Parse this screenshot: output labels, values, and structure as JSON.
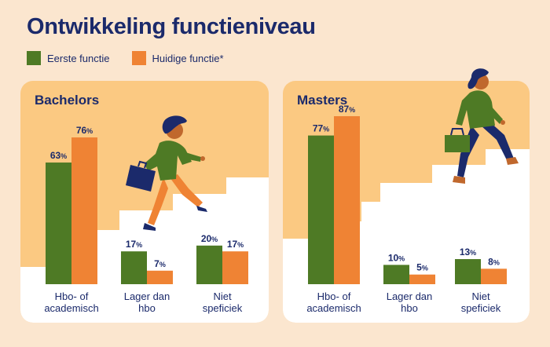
{
  "title": "Ontwikkeling functieniveau",
  "colors": {
    "background": "#fbe6cf",
    "panel_top": "#fbc982",
    "series_1": "#4e7a25",
    "series_2": "#ef8334",
    "text": "#1b2a6b"
  },
  "legend": [
    {
      "label": "Eerste functie",
      "color": "#4e7a25"
    },
    {
      "label": "Huidige functie*",
      "color": "#ef8334"
    }
  ],
  "chart_data": [
    {
      "type": "bar",
      "title": "Bachelors",
      "categories": [
        [
          "Hbo- of",
          "academisch"
        ],
        [
          "Lager dan",
          "hbo"
        ],
        [
          "Niet",
          "speficiek"
        ]
      ],
      "series": [
        {
          "name": "Eerste functie",
          "values": [
            63,
            17,
            20
          ]
        },
        {
          "name": "Huidige functie*",
          "values": [
            76,
            7,
            17
          ]
        }
      ],
      "unit": "%",
      "ylim": [
        0,
        100
      ]
    },
    {
      "type": "bar",
      "title": "Masters",
      "categories": [
        [
          "Hbo- of",
          "academisch"
        ],
        [
          "Lager dan",
          "hbo"
        ],
        [
          "Niet",
          "speficiek"
        ]
      ],
      "series": [
        {
          "name": "Eerste functie",
          "values": [
            77,
            10,
            13
          ]
        },
        {
          "name": "Huidige functie*",
          "values": [
            87,
            5,
            8
          ]
        }
      ],
      "unit": "%",
      "ylim": [
        0,
        100
      ]
    }
  ]
}
